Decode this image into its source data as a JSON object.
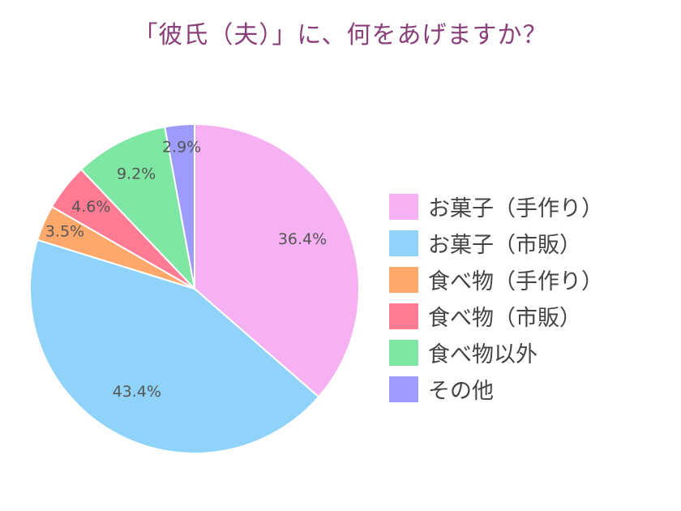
{
  "page": {
    "title": "「彼氏（夫）」に、何をあげますか？"
  },
  "chart_data": {
    "type": "pie",
    "title": "「彼氏（夫）」に、何をあげますか？",
    "legend_position": "right",
    "slices": [
      {
        "label": "お菓子（手作り）",
        "value": 36.4,
        "value_label": "36.4%",
        "color": "#f6b1f2"
      },
      {
        "label": "お菓子（市販）",
        "value": 43.4,
        "value_label": "43.4%",
        "color": "#8fd3fb"
      },
      {
        "label": "食べ物（手作り）",
        "value": 3.5,
        "value_label": "3.5%",
        "color": "#fea86b"
      },
      {
        "label": "食べ物（市販）",
        "value": 4.6,
        "value_label": "4.6%",
        "color": "#fe7b93"
      },
      {
        "label": "食べ物以外",
        "value": 9.2,
        "value_label": "9.2%",
        "color": "#7fe7a4"
      },
      {
        "label": "その他",
        "value": 2.9,
        "value_label": "2.9%",
        "color": "#9d9bfb"
      }
    ]
  }
}
